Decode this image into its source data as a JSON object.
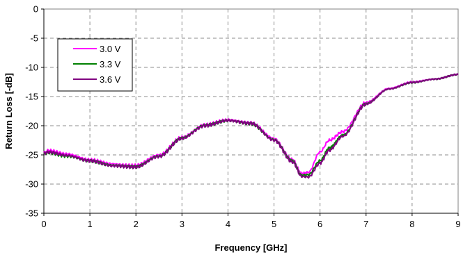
{
  "chart_data": {
    "type": "line",
    "title": "",
    "xlabel": "Frequency [GHz]",
    "ylabel": "Return Loss [-dB]",
    "xlim": [
      0,
      9
    ],
    "ylim": [
      -35,
      0
    ],
    "xticks": [
      0,
      1,
      2,
      3,
      4,
      5,
      6,
      7,
      8,
      9
    ],
    "yticks": [
      0,
      -5,
      -10,
      -15,
      -20,
      -25,
      -30,
      -35
    ],
    "grid": true,
    "legend_position": "top-left",
    "series": [
      {
        "name": "3.0 V",
        "color": "#ff00ff",
        "x": [
          0,
          0.1,
          0.5,
          1.0,
          1.5,
          2.0,
          2.5,
          3.0,
          3.5,
          4.0,
          4.5,
          5.0,
          5.4,
          5.6,
          5.75,
          6.0,
          6.2,
          6.5,
          7.0,
          7.5,
          8.0,
          8.5,
          9.0
        ],
        "y": [
          -24.6,
          -24.2,
          -24.9,
          -25.8,
          -26.6,
          -26.8,
          -25.0,
          -22.0,
          -19.8,
          -19.0,
          -19.5,
          -22.2,
          -25.8,
          -28.2,
          -28.0,
          -24.5,
          -22.5,
          -21.0,
          -16.0,
          -13.6,
          -12.5,
          -12.0,
          -11.2
        ]
      },
      {
        "name": "3.3 V",
        "color": "#008000",
        "x": [
          0,
          0.1,
          0.5,
          1.0,
          1.5,
          2.0,
          2.5,
          3.0,
          3.5,
          4.0,
          4.5,
          5.0,
          5.4,
          5.6,
          5.75,
          6.0,
          6.2,
          6.5,
          7.0,
          7.5,
          8.0,
          8.5,
          9.0
        ],
        "y": [
          -24.8,
          -24.6,
          -25.2,
          -26.0,
          -26.8,
          -27.0,
          -25.2,
          -22.1,
          -19.9,
          -19.1,
          -19.6,
          -22.4,
          -26.0,
          -28.5,
          -28.4,
          -26.0,
          -23.8,
          -21.6,
          -16.2,
          -13.7,
          -12.6,
          -12.0,
          -11.2
        ]
      },
      {
        "name": "3.6 V",
        "color": "#800080",
        "x": [
          0,
          0.1,
          0.5,
          1.0,
          1.5,
          2.0,
          2.5,
          3.0,
          3.5,
          4.0,
          4.5,
          5.0,
          5.4,
          5.6,
          5.75,
          6.0,
          6.2,
          6.5,
          7.0,
          7.5,
          8.0,
          8.5,
          9.0
        ],
        "y": [
          -24.7,
          -24.5,
          -25.1,
          -26.0,
          -26.9,
          -27.1,
          -25.3,
          -22.2,
          -20.0,
          -19.1,
          -19.6,
          -22.5,
          -26.2,
          -28.7,
          -28.8,
          -26.4,
          -24.2,
          -21.8,
          -16.3,
          -13.7,
          -12.6,
          -12.0,
          -11.2
        ]
      }
    ]
  }
}
